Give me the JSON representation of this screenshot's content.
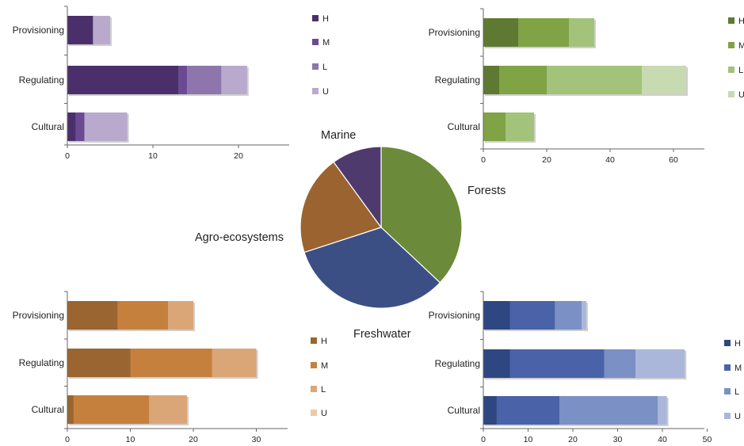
{
  "chart_data": [
    {
      "type": "bar",
      "orientation": "horizontal",
      "stacked": true,
      "ecosystem": "Marine",
      "categories": [
        "Provisioning",
        "Regulating",
        "Cultural"
      ],
      "series": [
        {
          "name": "H",
          "values": [
            3,
            13,
            1
          ]
        },
        {
          "name": "M",
          "values": [
            0,
            1,
            1
          ]
        },
        {
          "name": "L",
          "values": [
            0,
            4,
            0
          ]
        },
        {
          "name": "U",
          "values": [
            2,
            3,
            5
          ]
        }
      ],
      "xlim": [
        0,
        25
      ],
      "xticks": [
        "0",
        "10",
        "20"
      ],
      "legend": "right",
      "colors": [
        "#4b2f6b",
        "#6b4a94",
        "#8e76ad",
        "#b9aacd"
      ]
    },
    {
      "type": "bar",
      "orientation": "horizontal",
      "stacked": true,
      "ecosystem": "Forests",
      "categories": [
        "Provisioning",
        "Regulating",
        "Cultural"
      ],
      "series": [
        {
          "name": "H",
          "values": [
            11,
            5,
            0
          ]
        },
        {
          "name": "M",
          "values": [
            16,
            15,
            7
          ]
        },
        {
          "name": "L",
          "values": [
            8,
            30,
            9
          ]
        },
        {
          "name": "U",
          "values": [
            0,
            14,
            0
          ]
        }
      ],
      "xlim": [
        0,
        70
      ],
      "xticks": [
        "0",
        "20",
        "40",
        "60"
      ],
      "legend": "right",
      "colors": [
        "#5e7a32",
        "#7fa345",
        "#a3c27a",
        "#c8dab0"
      ]
    },
    {
      "type": "bar",
      "orientation": "horizontal",
      "stacked": true,
      "ecosystem": "Agro-ecosystems",
      "categories": [
        "Provisioning",
        "Regulating",
        "Cultural"
      ],
      "series": [
        {
          "name": "H",
          "values": [
            8,
            10,
            1
          ]
        },
        {
          "name": "M",
          "values": [
            8,
            13,
            12
          ]
        },
        {
          "name": "L",
          "values": [
            4,
            7,
            6
          ]
        },
        {
          "name": "U",
          "values": [
            0,
            0,
            0
          ]
        }
      ],
      "xlim": [
        0,
        35
      ],
      "xticks": [
        "0",
        "10",
        "20",
        "30"
      ],
      "legend": "right",
      "colors": [
        "#9a6530",
        "#c6803e",
        "#dba677",
        "#ecc9a4"
      ]
    },
    {
      "type": "bar",
      "orientation": "horizontal",
      "stacked": true,
      "ecosystem": "Freshwater",
      "categories": [
        "Provisioning",
        "Regulating",
        "Cultural"
      ],
      "series": [
        {
          "name": "H",
          "values": [
            6,
            6,
            3
          ]
        },
        {
          "name": "M",
          "values": [
            10,
            21,
            14
          ]
        },
        {
          "name": "L",
          "values": [
            6,
            7,
            22
          ]
        },
        {
          "name": "U",
          "values": [
            1,
            11,
            2
          ]
        }
      ],
      "xlim": [
        0,
        50
      ],
      "xticks": [
        "0",
        "10",
        "20",
        "30",
        "40",
        "50"
      ],
      "legend": "right",
      "colors": [
        "#2f4780",
        "#4a62a8",
        "#7b90c4",
        "#aab7da"
      ]
    },
    {
      "type": "pie",
      "labels": [
        "Forests",
        "Freshwater",
        "Agro-ecosystems",
        "Marine"
      ],
      "values": [
        37,
        33,
        20,
        10
      ],
      "colors": [
        "#6b8a3a",
        "#3c4f85",
        "#9b6330",
        "#4f3a6e"
      ]
    }
  ]
}
